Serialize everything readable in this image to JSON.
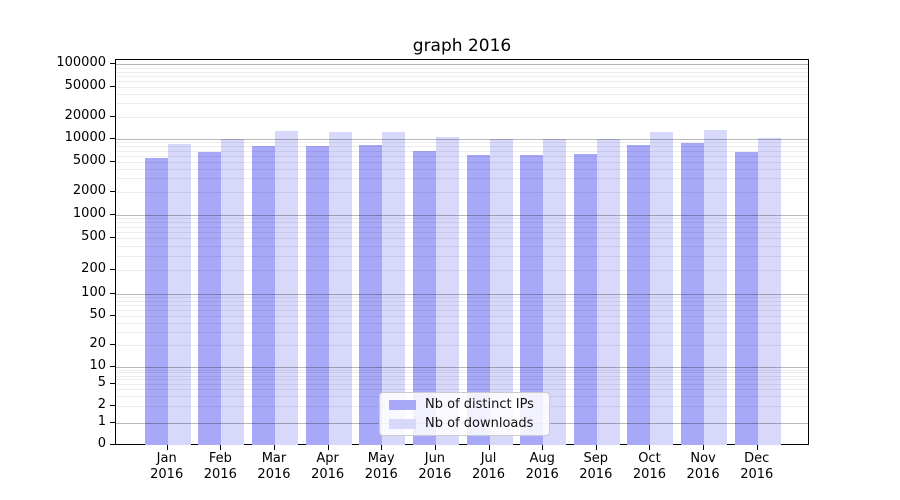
{
  "chart_data": {
    "type": "bar",
    "title": "graph 2016",
    "categories": [
      {
        "month": "Jan",
        "year": "2016"
      },
      {
        "month": "Feb",
        "year": "2016"
      },
      {
        "month": "Mar",
        "year": "2016"
      },
      {
        "month": "Apr",
        "year": "2016"
      },
      {
        "month": "May",
        "year": "2016"
      },
      {
        "month": "Jun",
        "year": "2016"
      },
      {
        "month": "Jul",
        "year": "2016"
      },
      {
        "month": "Aug",
        "year": "2016"
      },
      {
        "month": "Sep",
        "year": "2016"
      },
      {
        "month": "Oct",
        "year": "2016"
      },
      {
        "month": "Nov",
        "year": "2016"
      },
      {
        "month": "Dec",
        "year": "2016"
      }
    ],
    "series": [
      {
        "name": "Nb of distinct IPs",
        "color": "#a8a8f8",
        "values": [
          5600,
          6800,
          8200,
          8000,
          8400,
          7000,
          6200,
          6100,
          6300,
          8300,
          8800,
          6700
        ]
      },
      {
        "name": "Nb of downloads",
        "color": "#d8d8fa",
        "values": [
          8600,
          10000,
          12800,
          12300,
          12600,
          10700,
          9900,
          10000,
          10000,
          12300,
          13200,
          10200
        ]
      }
    ],
    "yscale": "symlog",
    "y_ticks": [
      0,
      1,
      2,
      5,
      10,
      20,
      50,
      100,
      200,
      500,
      1000,
      2000,
      5000,
      10000,
      20000,
      50000,
      100000
    ],
    "ylim": [
      0,
      120000
    ],
    "xlabel": "",
    "ylabel": "",
    "grid": "major-and-minor, drawn over bars",
    "legend_position": "lower center"
  }
}
